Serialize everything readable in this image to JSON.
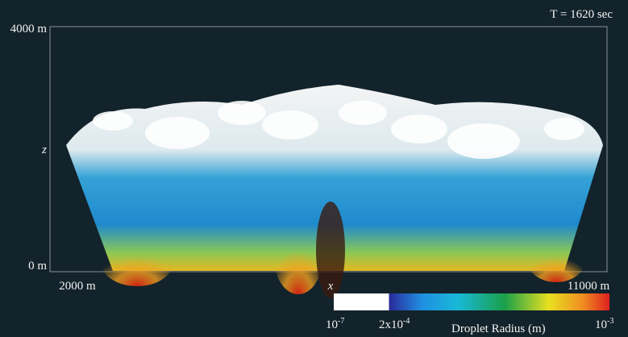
{
  "time_label": "T = 1620 sec",
  "axes": {
    "y_top": "4000 m",
    "y_label": "z",
    "y_bottom": "0 m",
    "x_left": "2000 m",
    "x_label": "x",
    "x_right": "11000 m"
  },
  "colorbar": {
    "title": "Droplet Radius (m)",
    "labels": [
      {
        "base": "10",
        "exponent": "-7"
      },
      {
        "base": "2x10",
        "exponent": "-4"
      },
      {
        "base": "10",
        "exponent": "-3"
      }
    ]
  }
}
